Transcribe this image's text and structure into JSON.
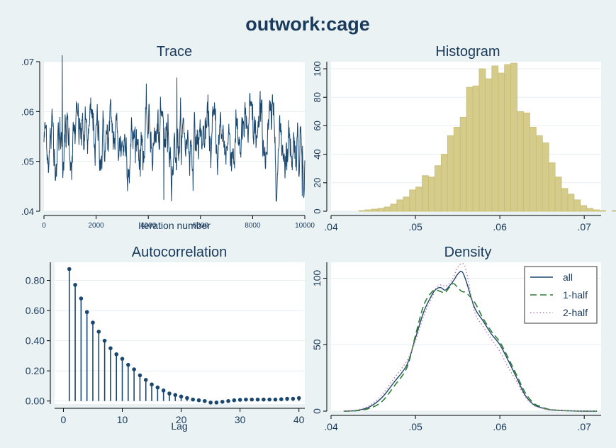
{
  "title": "outwork:cage",
  "colors": {
    "background": "#eaf2f3",
    "plot_bg": "#ffffff",
    "grid": "#e8eef0",
    "trace": "#1a476f",
    "hist_fill": "#d5cb8a",
    "hist_edge": "#c8bd72",
    "acf": "#1a476f",
    "density_all": "#1a476f",
    "density_half1": "#2e7d32",
    "density_half2": "#c080a8",
    "title": "#1a3a5c"
  },
  "chart_data": [
    {
      "id": "trace",
      "type": "line",
      "title": "Trace",
      "xlabel": "Iteration number",
      "ylabel": "",
      "xlim": [
        0,
        10000
      ],
      "ylim": [
        0.04,
        0.07
      ],
      "xticks": [
        0,
        2000,
        4000,
        6000,
        8000,
        10000
      ],
      "xtick_labels": [
        "0",
        "2000",
        "4000",
        "6000",
        "8000",
        "10000"
      ],
      "yticks": [
        0.04,
        0.05,
        0.06,
        0.07
      ],
      "ytick_labels": [
        ".04",
        ".05",
        ".06",
        ".07"
      ],
      "grid": true,
      "series": [
        {
          "n_points": 1000,
          "x_start": 1,
          "x_end": 10000,
          "mean": 0.0545,
          "sd": 0.0038,
          "min": 0.042,
          "max": 0.0713,
          "peaks": [
            {
              "x": 700,
              "y": 0.0713
            },
            {
              "x": 5100,
              "y": 0.0668
            },
            {
              "x": 4600,
              "y": 0.0423
            },
            {
              "x": 9900,
              "y": 0.043
            }
          ]
        }
      ]
    },
    {
      "id": "histogram",
      "type": "bar",
      "title": "Histogram",
      "xlabel": "",
      "ylabel": "",
      "xlim": [
        0.04,
        0.072
      ],
      "ylim": [
        0,
        105
      ],
      "xticks": [
        0.04,
        0.05,
        0.06,
        0.07
      ],
      "xtick_labels": [
        ".04",
        ".05",
        ".06",
        ".07"
      ],
      "yticks": [
        0,
        20,
        40,
        60,
        80,
        100
      ],
      "ytick_labels": [
        "0",
        "20",
        "40",
        "60",
        "80",
        "100"
      ],
      "grid": true,
      "bin_start": 0.0418,
      "bin_width": 0.00075,
      "values": [
        0,
        0,
        0.5,
        1,
        1.5,
        2,
        3,
        5,
        8,
        10,
        15,
        17,
        25,
        24,
        32,
        40,
        53,
        59,
        66,
        87,
        88,
        100,
        93,
        102,
        97,
        103,
        104,
        70,
        69,
        59,
        53,
        48,
        34,
        24,
        16,
        12,
        8,
        4,
        2,
        1,
        0.5,
        0,
        0.5,
        0.3
      ]
    },
    {
      "id": "autocorrelation",
      "type": "scatter",
      "title": "Autocorrelation",
      "xlabel": "Lag",
      "ylabel": "",
      "xlim": [
        -1.5,
        41
      ],
      "ylim": [
        -0.02,
        0.92
      ],
      "xticks": [
        0,
        10,
        20,
        30,
        40
      ],
      "xtick_labels": [
        "0",
        "10",
        "20",
        "30",
        "40"
      ],
      "yticks": [
        0,
        0.2,
        0.4,
        0.6,
        0.8
      ],
      "ytick_labels": [
        "0.00",
        "0.20",
        "0.40",
        "0.60",
        "0.80"
      ],
      "grid": true,
      "lags": [
        1,
        2,
        3,
        4,
        5,
        6,
        7,
        8,
        9,
        10,
        11,
        12,
        13,
        14,
        15,
        16,
        17,
        18,
        19,
        20,
        21,
        22,
        23,
        24,
        25,
        26,
        27,
        28,
        29,
        30,
        31,
        32,
        33,
        34,
        35,
        36,
        37,
        38,
        39,
        40
      ],
      "values": [
        0.875,
        0.77,
        0.68,
        0.59,
        0.52,
        0.46,
        0.4,
        0.35,
        0.31,
        0.28,
        0.24,
        0.21,
        0.17,
        0.14,
        0.11,
        0.09,
        0.07,
        0.05,
        0.04,
        0.03,
        0.02,
        0.01,
        0.005,
        0,
        -0.01,
        -0.01,
        -0.005,
        0,
        0.005,
        0.008,
        0.01,
        0.01,
        0.01,
        0.01,
        0.01,
        0.01,
        0.012,
        0.015,
        0.015,
        0.02
      ]
    },
    {
      "id": "density",
      "type": "line",
      "title": "Density",
      "xlabel": "",
      "ylabel": "",
      "xlim": [
        0.04,
        0.072
      ],
      "ylim": [
        0,
        112
      ],
      "xticks": [
        0.04,
        0.05,
        0.06,
        0.07
      ],
      "xtick_labels": [
        ".04",
        ".05",
        ".06",
        ".07"
      ],
      "yticks": [
        0,
        50,
        100
      ],
      "ytick_labels": [
        "0",
        "50",
        "100"
      ],
      "grid": true,
      "legend": {
        "position": "top-right",
        "entries": [
          "all",
          "1-half",
          "2-half"
        ]
      },
      "x": [
        0.0415,
        0.043,
        0.0445,
        0.046,
        0.0475,
        0.049,
        0.05,
        0.051,
        0.052,
        0.0525,
        0.053,
        0.0535,
        0.054,
        0.0545,
        0.055,
        0.0555,
        0.056,
        0.057,
        0.058,
        0.059,
        0.06,
        0.061,
        0.062,
        0.063,
        0.064,
        0.065,
        0.066,
        0.068,
        0.07,
        0.0715
      ],
      "series": [
        {
          "name": "all",
          "style": "solid",
          "values": [
            0,
            0.5,
            3,
            10,
            22,
            35,
            55,
            75,
            88,
            92,
            93,
            91,
            94,
            98,
            103,
            105,
            98,
            78,
            68,
            58,
            50,
            38,
            25,
            12,
            5,
            2.5,
            1,
            0.3,
            0,
            0
          ]
        },
        {
          "name": "1-half",
          "style": "dash",
          "values": [
            0,
            0.3,
            2,
            7,
            19,
            33,
            57,
            80,
            90,
            91,
            90,
            89,
            93,
            96,
            93,
            90,
            89,
            82,
            70,
            60,
            52,
            40,
            27,
            14,
            6,
            3,
            1.2,
            0.3,
            0,
            0
          ]
        },
        {
          "name": "2-half",
          "style": "dot",
          "values": [
            0,
            0.8,
            4,
            12,
            25,
            38,
            53,
            72,
            86,
            93,
            95,
            94,
            96,
            101,
            108,
            111,
            106,
            75,
            64,
            54,
            45,
            33,
            22,
            11,
            4.5,
            2,
            0.8,
            0.3,
            0,
            0
          ]
        }
      ]
    }
  ]
}
